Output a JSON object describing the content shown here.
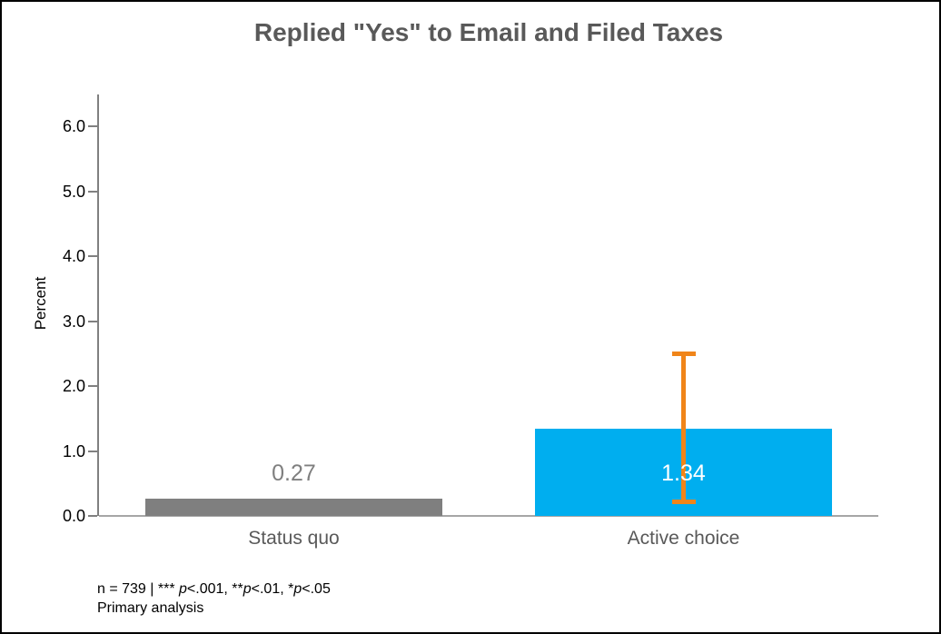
{
  "colors": {
    "background": "#FFFFFF",
    "border": "#000000",
    "title": "#595959",
    "tick_label": "#000000",
    "y_axis": "#808080",
    "x_axis": "#A6A6A6",
    "category_label": "#595959"
  },
  "chart_data": {
    "type": "bar",
    "title": "Replied \"Yes\" to Email and Filed Taxes",
    "ylabel": "Percent",
    "xlabel": "",
    "categories": [
      "Status quo",
      "Active choice"
    ],
    "values": [
      0.27,
      1.34
    ],
    "value_labels": [
      "0.27",
      "1.34"
    ],
    "bar_colors": [
      "#7F7F7F",
      "#00AEEF"
    ],
    "value_label_colors": [
      "#7F7F7F",
      "#FFFFFF"
    ],
    "error_bars": [
      null,
      {
        "low": 0.18,
        "high": 2.53,
        "color": "#F08519"
      }
    ],
    "ylim": [
      0,
      6.5
    ],
    "ytick_labels": [
      "0.0",
      "1.0",
      "2.0",
      "3.0",
      "4.0",
      "5.0",
      "6.0"
    ],
    "ytick_values": [
      0,
      1,
      2,
      3,
      4,
      5,
      6
    ],
    "grid": false,
    "legend": false
  },
  "footnote": {
    "line1_plain": "n = 739 | *** p<.001, **p<.01, *p<.05",
    "line1_segments": [
      {
        "text": "n = 739 | *** ",
        "italic": false
      },
      {
        "text": "p",
        "italic": true
      },
      {
        "text": "<.001, **",
        "italic": false
      },
      {
        "text": "p",
        "italic": true
      },
      {
        "text": "<.01, *",
        "italic": false
      },
      {
        "text": "p",
        "italic": true
      },
      {
        "text": "<.05",
        "italic": false
      }
    ],
    "line2": "Primary analysis"
  }
}
